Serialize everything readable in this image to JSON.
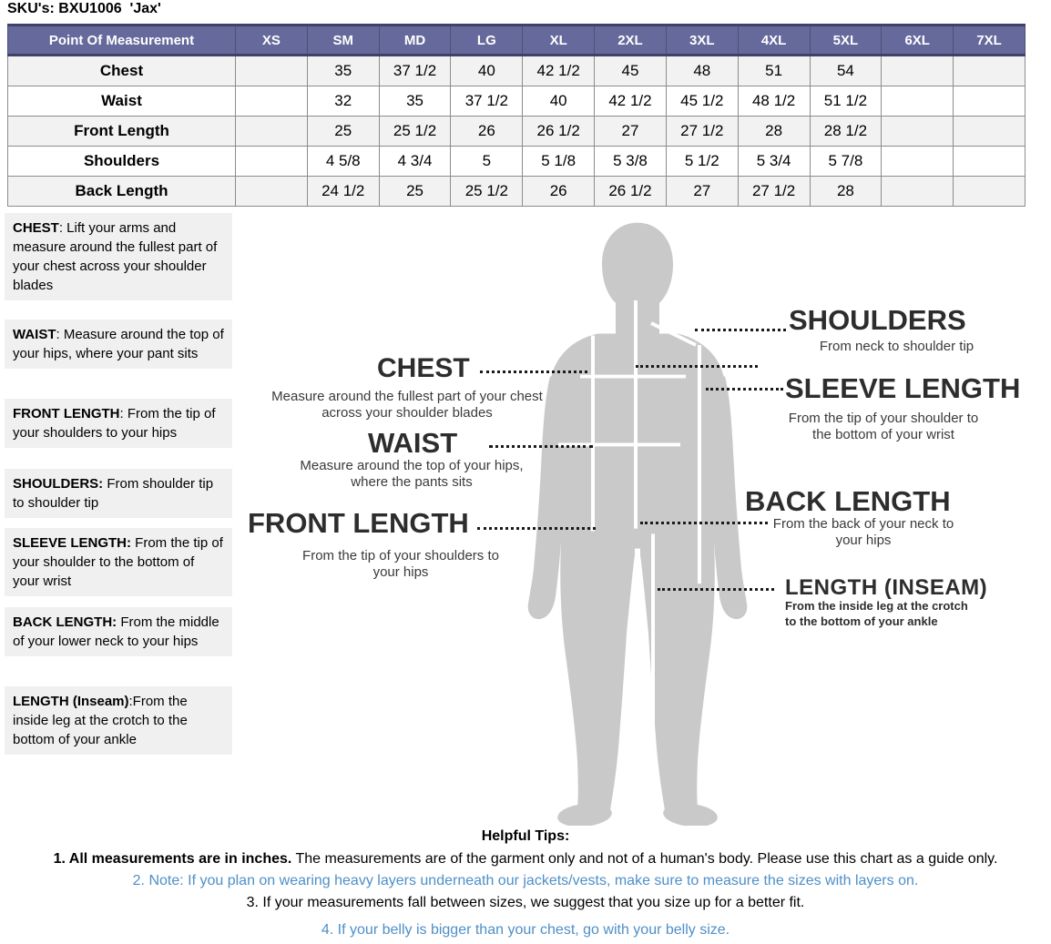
{
  "title": "SKU's: BXU1006  'Jax'",
  "size_chart": {
    "columns": [
      "Point Of Measurement",
      "XS",
      "SM",
      "MD",
      "LG",
      "XL",
      "2XL",
      "3XL",
      "4XL",
      "5XL",
      "6XL",
      "7XL"
    ],
    "rows": [
      {
        "label": "Chest",
        "values": [
          "",
          "35",
          "37 1/2",
          "40",
          "42 1/2",
          "45",
          "48",
          "51",
          "54",
          "",
          ""
        ]
      },
      {
        "label": "Waist",
        "values": [
          "",
          "32",
          "35",
          "37 1/2",
          "40",
          "42 1/2",
          "45 1/2",
          "48 1/2",
          "51 1/2",
          "",
          ""
        ]
      },
      {
        "label": "Front Length",
        "values": [
          "",
          "25",
          "25 1/2",
          "26",
          "26 1/2",
          "27",
          "27 1/2",
          "28",
          "28 1/2",
          "",
          ""
        ]
      },
      {
        "label": "Shoulders",
        "values": [
          "",
          "4 5/8",
          "4 3/4",
          "5",
          "5 1/8",
          "5 3/8",
          "5 1/2",
          "5 3/4",
          "5 7/8",
          "",
          ""
        ]
      },
      {
        "label": "Back Length",
        "values": [
          "",
          "24 1/2",
          "25",
          "25 1/2",
          "26",
          "26 1/2",
          "27",
          "27 1/2",
          "28",
          "",
          ""
        ]
      }
    ]
  },
  "definitions": [
    {
      "key": "chest",
      "term": "CHEST",
      "rest": ": Lift your arms  and measure around the fullest part of your chest across your shoulder blades"
    },
    {
      "key": "waist",
      "term": "WAIST",
      "rest": ":  Measure around the top of your hips, where your pant sits"
    },
    {
      "key": "front-length",
      "term": "FRONT LENGTH",
      "rest": ": From the tip of your shoulders to your hips"
    },
    {
      "key": "shoulders",
      "term": "SHOULDERS:",
      "rest": " From shoulder tip to shoulder tip"
    },
    {
      "key": "sleeve-length",
      "term": "SLEEVE LENGTH:",
      "rest": " From the tip of your shoulder to the bottom of your wrist"
    },
    {
      "key": "back-length",
      "term": "BACK LENGTH:",
      "rest": " From the middle of your lower neck to your hips"
    },
    {
      "key": "inseam",
      "term": "LENGTH (Inseam)",
      "rest": ":From the inside leg at the crotch to the bottom of your ankle"
    }
  ],
  "figure": {
    "annotations": {
      "chest": {
        "label": "CHEST",
        "desc": "Measure around the fullest part of your chest across your shoulder blades"
      },
      "waist": {
        "label": "WAIST",
        "desc": "Measure around the top of your hips, where the pants sits"
      },
      "front_length": {
        "label": "FRONT LENGTH",
        "desc": "From the tip of your shoulders to your hips"
      },
      "shoulders": {
        "label": "SHOULDERS",
        "desc": "From neck to shoulder tip"
      },
      "sleeve_length": {
        "label": "SLEEVE LENGTH",
        "desc": "From the tip of your shoulder to the bottom of your wrist"
      },
      "back_length": {
        "label": "BACK LENGTH",
        "desc": "From the back of your neck to your hips"
      },
      "inseam": {
        "label": "LENGTH (INSEAM)",
        "desc": "From the inside leg at the crotch to the bottom of your ankle"
      }
    }
  },
  "tips": {
    "heading": "Helpful Tips:",
    "lines": [
      {
        "bold": "1. All measurements are in inches.",
        "text": " The measurements are of the garment only and not of a human's body. Please use this chart as a guide only.",
        "color": "#000000"
      },
      {
        "bold": "",
        "text": "2. Note: If you plan on wearing heavy layers underneath our jackets/vests, make sure to measure the sizes with layers on.",
        "color": "#4e8fc7"
      },
      {
        "bold": "",
        "text": "3. If your measurements fall between sizes, we suggest that you size up for a better fit.",
        "color": "#000000"
      },
      {
        "bold": "",
        "text": "4. If your belly is bigger than your chest, go with your belly size.",
        "color": "#4e8fc7"
      }
    ]
  },
  "colors": {
    "table_header_bg": "#66699b",
    "table_header_border": "#3f4169",
    "table_header_text": "#ffffff",
    "table_row_alt_bg": "#f2f2f2",
    "table_border": "#8c8c8c",
    "definition_box_bg": "#f0f0f0",
    "silhouette": "#c9c9c9",
    "tip_blue": "#4e8fc7"
  }
}
